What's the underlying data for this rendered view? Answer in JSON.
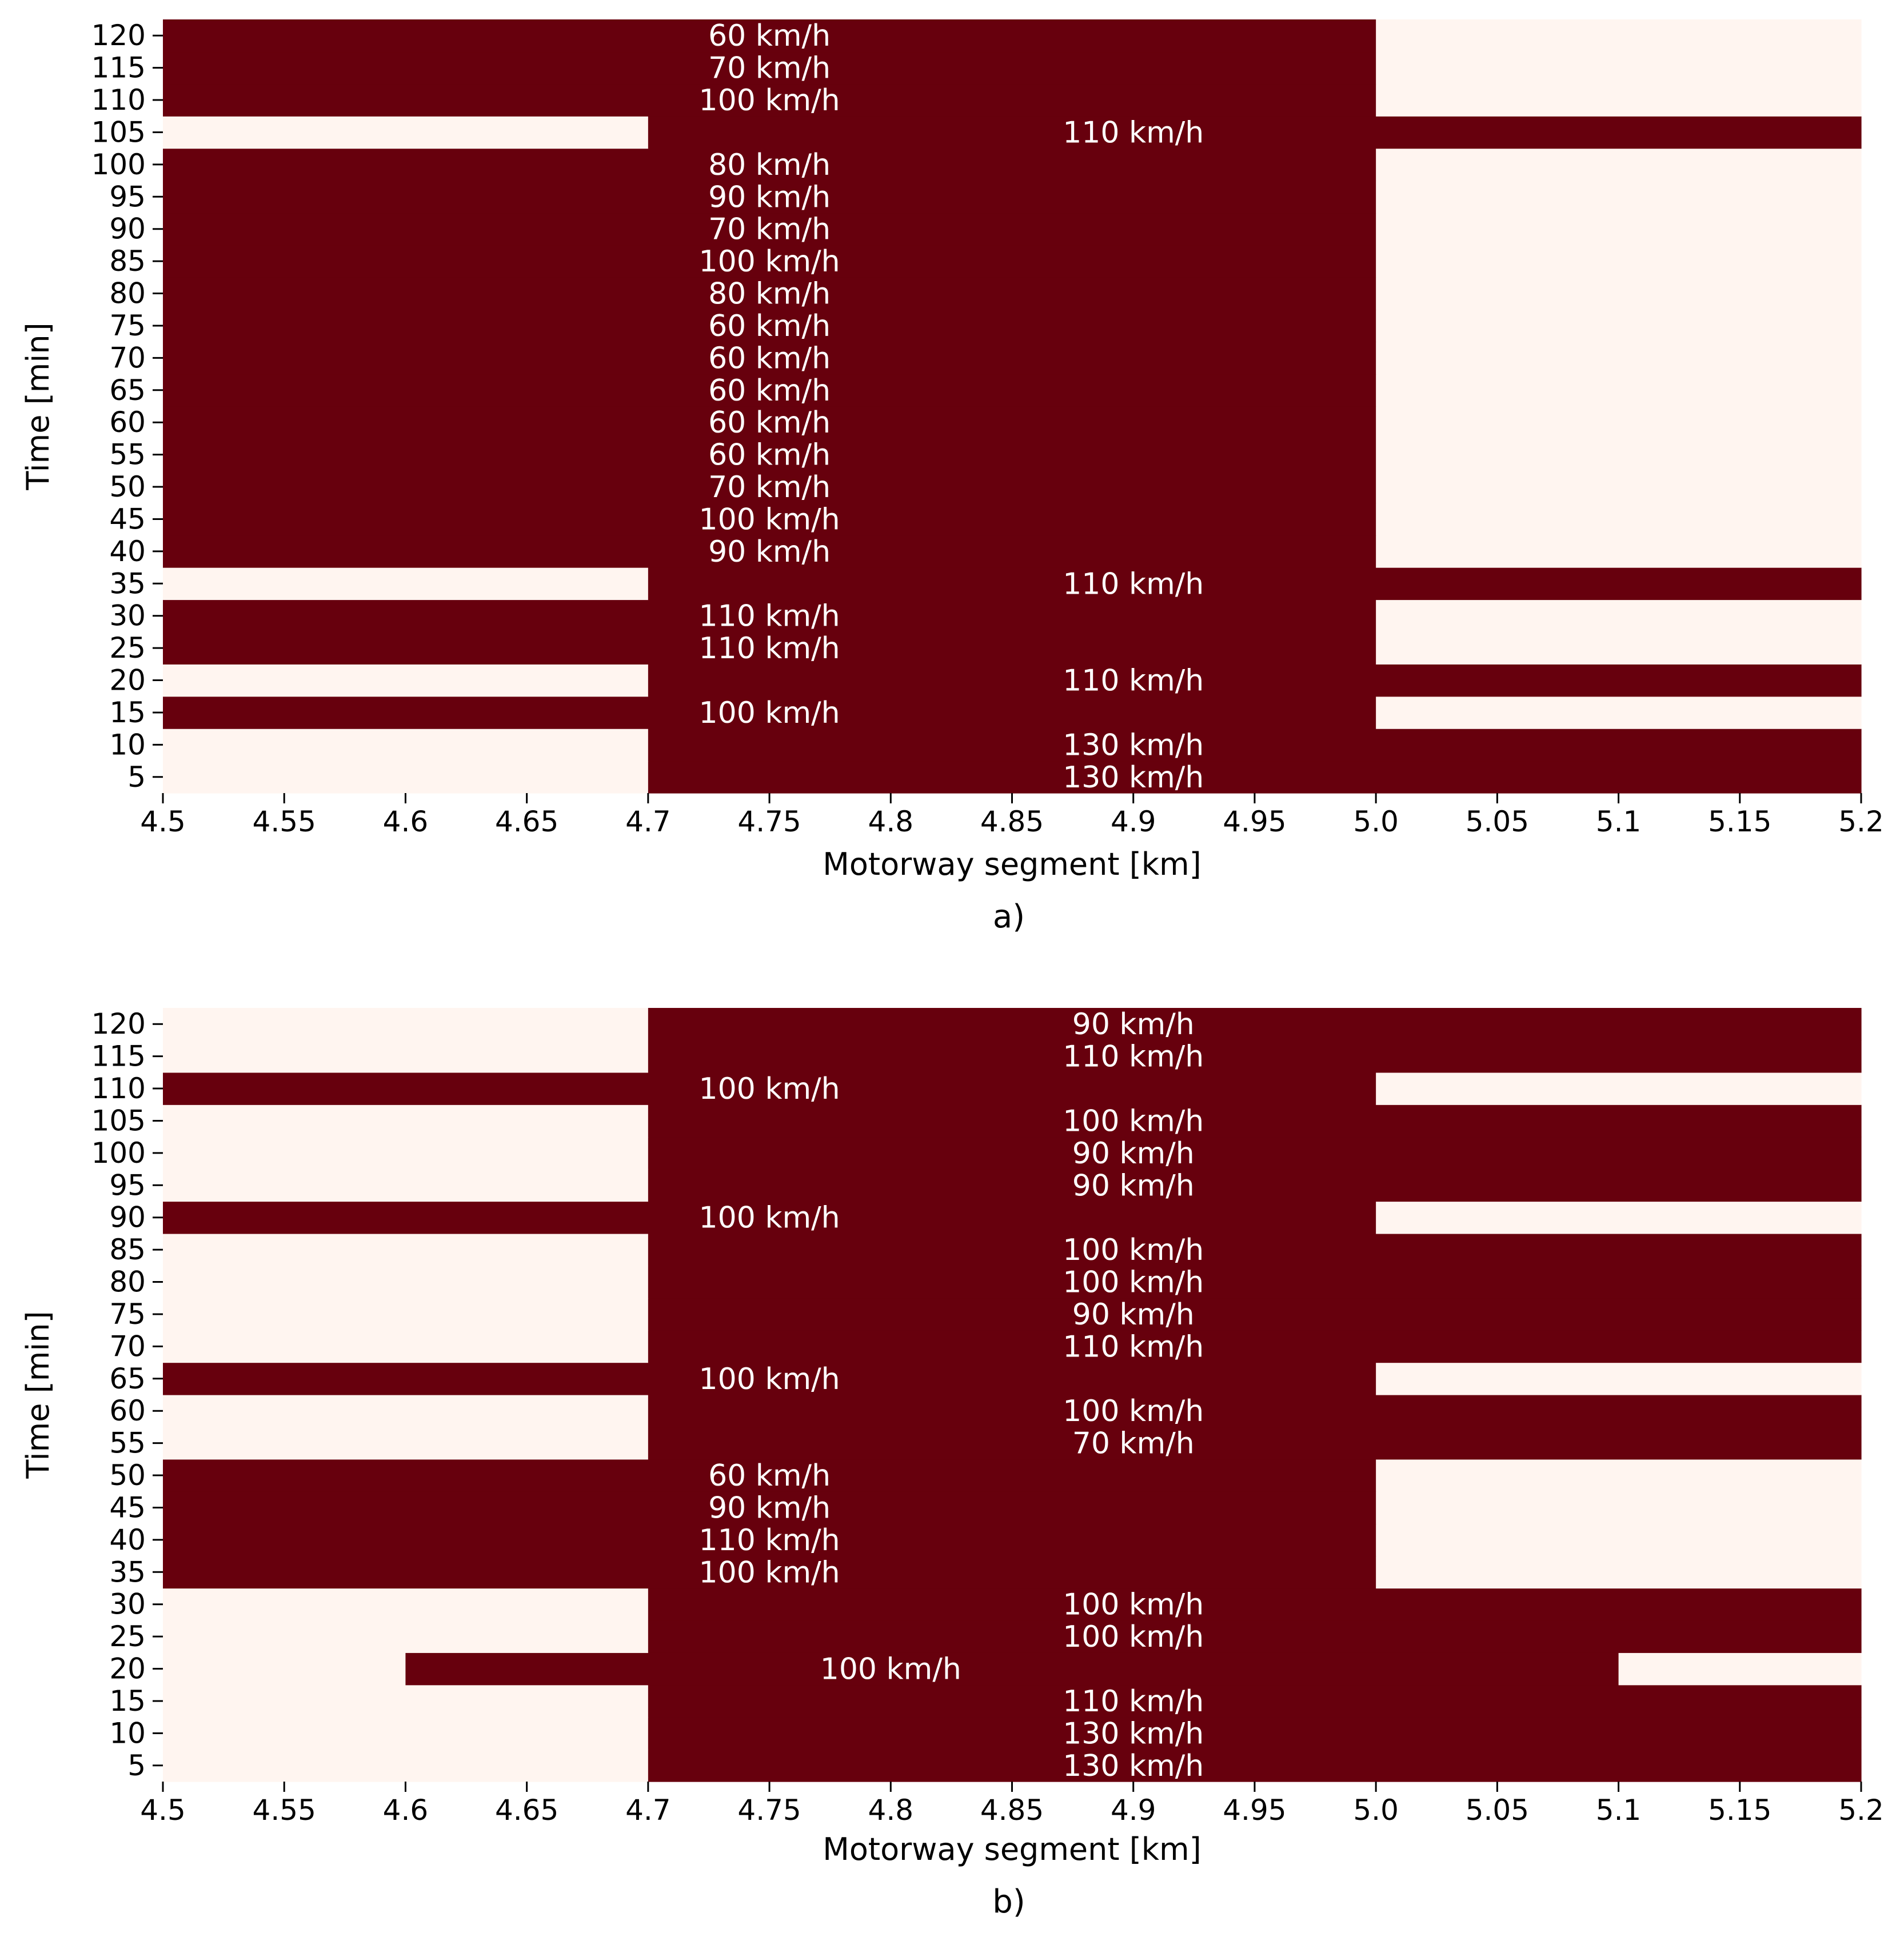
{
  "colors": {
    "active": "#67000d",
    "inactive": "#fff5f0",
    "annotation_text": "#ffffff",
    "axis": "#000000"
  },
  "chart_data": [
    {
      "type": "heatmap",
      "panel_label": "a)",
      "xlabel": "Motorway segment [km]",
      "ylabel": "Time [min]",
      "x_edges": [
        4.5,
        4.7,
        5.0,
        5.2
      ],
      "x_ticks": [
        "4.5",
        "4.55",
        "4.6",
        "4.65",
        "4.7",
        "4.75",
        "4.8",
        "4.85",
        "4.9",
        "4.95",
        "5.0",
        "5.05",
        "5.1",
        "5.15",
        "5.2"
      ],
      "times": [
        5,
        10,
        15,
        20,
        25,
        30,
        35,
        40,
        45,
        50,
        55,
        60,
        65,
        70,
        75,
        80,
        85,
        90,
        95,
        100,
        105,
        110,
        115,
        120
      ],
      "rows": [
        {
          "t": 5,
          "cells": [
            [
              4.5,
              4.7,
              0
            ],
            [
              4.7,
              5.2,
              1
            ]
          ],
          "labels": [
            {
              "x": 4.9,
              "text": "130 km/h"
            }
          ]
        },
        {
          "t": 10,
          "cells": [
            [
              4.5,
              4.7,
              0
            ],
            [
              4.7,
              5.2,
              1
            ]
          ],
          "labels": [
            {
              "x": 4.9,
              "text": "130 km/h"
            }
          ]
        },
        {
          "t": 15,
          "cells": [
            [
              4.5,
              5.0,
              1
            ],
            [
              5.0,
              5.2,
              0
            ]
          ],
          "labels": [
            {
              "x": 4.75,
              "text": "100 km/h"
            }
          ]
        },
        {
          "t": 20,
          "cells": [
            [
              4.5,
              4.7,
              0
            ],
            [
              4.7,
              5.2,
              1
            ]
          ],
          "labels": [
            {
              "x": 4.9,
              "text": "110 km/h"
            }
          ]
        },
        {
          "t": 25,
          "cells": [
            [
              4.5,
              5.0,
              1
            ],
            [
              5.0,
              5.2,
              0
            ]
          ],
          "labels": [
            {
              "x": 4.75,
              "text": "110 km/h"
            }
          ]
        },
        {
          "t": 30,
          "cells": [
            [
              4.5,
              5.0,
              1
            ],
            [
              5.0,
              5.2,
              0
            ]
          ],
          "labels": [
            {
              "x": 4.75,
              "text": "110 km/h"
            }
          ]
        },
        {
          "t": 35,
          "cells": [
            [
              4.5,
              4.7,
              0
            ],
            [
              4.7,
              5.2,
              1
            ]
          ],
          "labels": [
            {
              "x": 4.9,
              "text": "110 km/h"
            }
          ]
        },
        {
          "t": 40,
          "cells": [
            [
              4.5,
              5.0,
              1
            ],
            [
              5.0,
              5.2,
              0
            ]
          ],
          "labels": [
            {
              "x": 4.75,
              "text": "90 km/h"
            }
          ]
        },
        {
          "t": 45,
          "cells": [
            [
              4.5,
              5.0,
              1
            ],
            [
              5.0,
              5.2,
              0
            ]
          ],
          "labels": [
            {
              "x": 4.75,
              "text": "100 km/h"
            }
          ]
        },
        {
          "t": 50,
          "cells": [
            [
              4.5,
              5.0,
              1
            ],
            [
              5.0,
              5.2,
              0
            ]
          ],
          "labels": [
            {
              "x": 4.75,
              "text": "70 km/h"
            }
          ]
        },
        {
          "t": 55,
          "cells": [
            [
              4.5,
              5.0,
              1
            ],
            [
              5.0,
              5.2,
              0
            ]
          ],
          "labels": [
            {
              "x": 4.75,
              "text": "60 km/h"
            }
          ]
        },
        {
          "t": 60,
          "cells": [
            [
              4.5,
              5.0,
              1
            ],
            [
              5.0,
              5.2,
              0
            ]
          ],
          "labels": [
            {
              "x": 4.75,
              "text": "60 km/h"
            }
          ]
        },
        {
          "t": 65,
          "cells": [
            [
              4.5,
              5.0,
              1
            ],
            [
              5.0,
              5.2,
              0
            ]
          ],
          "labels": [
            {
              "x": 4.75,
              "text": "60 km/h"
            }
          ]
        },
        {
          "t": 70,
          "cells": [
            [
              4.5,
              5.0,
              1
            ],
            [
              5.0,
              5.2,
              0
            ]
          ],
          "labels": [
            {
              "x": 4.75,
              "text": "60 km/h"
            }
          ]
        },
        {
          "t": 75,
          "cells": [
            [
              4.5,
              5.0,
              1
            ],
            [
              5.0,
              5.2,
              0
            ]
          ],
          "labels": [
            {
              "x": 4.75,
              "text": "60 km/h"
            }
          ]
        },
        {
          "t": 80,
          "cells": [
            [
              4.5,
              5.0,
              1
            ],
            [
              5.0,
              5.2,
              0
            ]
          ],
          "labels": [
            {
              "x": 4.75,
              "text": "80 km/h"
            }
          ]
        },
        {
          "t": 85,
          "cells": [
            [
              4.5,
              5.0,
              1
            ],
            [
              5.0,
              5.2,
              0
            ]
          ],
          "labels": [
            {
              "x": 4.75,
              "text": "100 km/h"
            }
          ]
        },
        {
          "t": 90,
          "cells": [
            [
              4.5,
              5.0,
              1
            ],
            [
              5.0,
              5.2,
              0
            ]
          ],
          "labels": [
            {
              "x": 4.75,
              "text": "70 km/h"
            }
          ]
        },
        {
          "t": 95,
          "cells": [
            [
              4.5,
              5.0,
              1
            ],
            [
              5.0,
              5.2,
              0
            ]
          ],
          "labels": [
            {
              "x": 4.75,
              "text": "90 km/h"
            }
          ]
        },
        {
          "t": 100,
          "cells": [
            [
              4.5,
              5.0,
              1
            ],
            [
              5.0,
              5.2,
              0
            ]
          ],
          "labels": [
            {
              "x": 4.75,
              "text": "80 km/h"
            }
          ]
        },
        {
          "t": 105,
          "cells": [
            [
              4.5,
              4.7,
              0
            ],
            [
              4.7,
              5.2,
              1
            ]
          ],
          "labels": [
            {
              "x": 4.9,
              "text": "110 km/h"
            }
          ]
        },
        {
          "t": 110,
          "cells": [
            [
              4.5,
              5.0,
              1
            ],
            [
              5.0,
              5.2,
              0
            ]
          ],
          "labels": [
            {
              "x": 4.75,
              "text": "100 km/h"
            }
          ]
        },
        {
          "t": 115,
          "cells": [
            [
              4.5,
              5.0,
              1
            ],
            [
              5.0,
              5.2,
              0
            ]
          ],
          "labels": [
            {
              "x": 4.75,
              "text": "70 km/h"
            }
          ]
        },
        {
          "t": 120,
          "cells": [
            [
              4.5,
              5.0,
              1
            ],
            [
              5.0,
              5.2,
              0
            ]
          ],
          "labels": [
            {
              "x": 4.75,
              "text": "60 km/h"
            }
          ]
        }
      ]
    },
    {
      "type": "heatmap",
      "panel_label": "b)",
      "xlabel": "Motorway segment [km]",
      "ylabel": "Time [min]",
      "x_edges": [
        4.5,
        4.6,
        4.7,
        5.0,
        5.1,
        5.2
      ],
      "x_ticks": [
        "4.5",
        "4.55",
        "4.6",
        "4.65",
        "4.7",
        "4.75",
        "4.8",
        "4.85",
        "4.9",
        "4.95",
        "5.0",
        "5.05",
        "5.1",
        "5.15",
        "5.2"
      ],
      "times": [
        5,
        10,
        15,
        20,
        25,
        30,
        35,
        40,
        45,
        50,
        55,
        60,
        65,
        70,
        75,
        80,
        85,
        90,
        95,
        100,
        105,
        110,
        115,
        120
      ],
      "rows": [
        {
          "t": 5,
          "cells": [
            [
              4.5,
              4.7,
              0
            ],
            [
              4.7,
              5.2,
              1
            ]
          ],
          "labels": [
            {
              "x": 4.9,
              "text": "130 km/h"
            }
          ]
        },
        {
          "t": 10,
          "cells": [
            [
              4.5,
              4.7,
              0
            ],
            [
              4.7,
              5.2,
              1
            ]
          ],
          "labels": [
            {
              "x": 4.9,
              "text": "130 km/h"
            }
          ]
        },
        {
          "t": 15,
          "cells": [
            [
              4.5,
              4.7,
              0
            ],
            [
              4.7,
              5.2,
              1
            ]
          ],
          "labels": [
            {
              "x": 4.9,
              "text": "110 km/h"
            }
          ]
        },
        {
          "t": 20,
          "cells": [
            [
              4.5,
              4.6,
              0
            ],
            [
              4.6,
              5.1,
              1
            ],
            [
              5.1,
              5.2,
              0
            ]
          ],
          "labels": [
            {
              "x": 4.8,
              "text": "100 km/h"
            }
          ]
        },
        {
          "t": 25,
          "cells": [
            [
              4.5,
              4.7,
              0
            ],
            [
              4.7,
              5.2,
              1
            ]
          ],
          "labels": [
            {
              "x": 4.9,
              "text": "100 km/h"
            }
          ]
        },
        {
          "t": 30,
          "cells": [
            [
              4.5,
              4.7,
              0
            ],
            [
              4.7,
              5.2,
              1
            ]
          ],
          "labels": [
            {
              "x": 4.9,
              "text": "100 km/h"
            }
          ]
        },
        {
          "t": 35,
          "cells": [
            [
              4.5,
              5.0,
              1
            ],
            [
              5.0,
              5.2,
              0
            ]
          ],
          "labels": [
            {
              "x": 4.75,
              "text": "100 km/h"
            }
          ]
        },
        {
          "t": 40,
          "cells": [
            [
              4.5,
              5.0,
              1
            ],
            [
              5.0,
              5.2,
              0
            ]
          ],
          "labels": [
            {
              "x": 4.75,
              "text": "110 km/h"
            }
          ]
        },
        {
          "t": 45,
          "cells": [
            [
              4.5,
              5.0,
              1
            ],
            [
              5.0,
              5.2,
              0
            ]
          ],
          "labels": [
            {
              "x": 4.75,
              "text": "90 km/h"
            }
          ]
        },
        {
          "t": 50,
          "cells": [
            [
              4.5,
              5.0,
              1
            ],
            [
              5.0,
              5.2,
              0
            ]
          ],
          "labels": [
            {
              "x": 4.75,
              "text": "60 km/h"
            }
          ]
        },
        {
          "t": 55,
          "cells": [
            [
              4.5,
              4.7,
              0
            ],
            [
              4.7,
              5.2,
              1
            ]
          ],
          "labels": [
            {
              "x": 4.9,
              "text": "70 km/h"
            }
          ]
        },
        {
          "t": 60,
          "cells": [
            [
              4.5,
              4.7,
              0
            ],
            [
              4.7,
              5.2,
              1
            ]
          ],
          "labels": [
            {
              "x": 4.9,
              "text": "100 km/h"
            }
          ]
        },
        {
          "t": 65,
          "cells": [
            [
              4.5,
              5.0,
              1
            ],
            [
              5.0,
              5.2,
              0
            ]
          ],
          "labels": [
            {
              "x": 4.75,
              "text": "100 km/h"
            }
          ]
        },
        {
          "t": 70,
          "cells": [
            [
              4.5,
              4.7,
              0
            ],
            [
              4.7,
              5.2,
              1
            ]
          ],
          "labels": [
            {
              "x": 4.9,
              "text": "110 km/h"
            }
          ]
        },
        {
          "t": 75,
          "cells": [
            [
              4.5,
              4.7,
              0
            ],
            [
              4.7,
              5.2,
              1
            ]
          ],
          "labels": [
            {
              "x": 4.9,
              "text": "90 km/h"
            }
          ]
        },
        {
          "t": 80,
          "cells": [
            [
              4.5,
              4.7,
              0
            ],
            [
              4.7,
              5.2,
              1
            ]
          ],
          "labels": [
            {
              "x": 4.9,
              "text": "100 km/h"
            }
          ]
        },
        {
          "t": 85,
          "cells": [
            [
              4.5,
              4.7,
              0
            ],
            [
              4.7,
              5.2,
              1
            ]
          ],
          "labels": [
            {
              "x": 4.9,
              "text": "100 km/h"
            }
          ]
        },
        {
          "t": 90,
          "cells": [
            [
              4.5,
              5.0,
              1
            ],
            [
              5.0,
              5.2,
              0
            ]
          ],
          "labels": [
            {
              "x": 4.75,
              "text": "100 km/h"
            }
          ]
        },
        {
          "t": 95,
          "cells": [
            [
              4.5,
              4.7,
              0
            ],
            [
              4.7,
              5.2,
              1
            ]
          ],
          "labels": [
            {
              "x": 4.9,
              "text": "90 km/h"
            }
          ]
        },
        {
          "t": 100,
          "cells": [
            [
              4.5,
              4.7,
              0
            ],
            [
              4.7,
              5.2,
              1
            ]
          ],
          "labels": [
            {
              "x": 4.9,
              "text": "90 km/h"
            }
          ]
        },
        {
          "t": 105,
          "cells": [
            [
              4.5,
              4.7,
              0
            ],
            [
              4.7,
              5.2,
              1
            ]
          ],
          "labels": [
            {
              "x": 4.9,
              "text": "100 km/h"
            }
          ]
        },
        {
          "t": 110,
          "cells": [
            [
              4.5,
              5.0,
              1
            ],
            [
              5.0,
              5.2,
              0
            ]
          ],
          "labels": [
            {
              "x": 4.75,
              "text": "100 km/h"
            }
          ]
        },
        {
          "t": 115,
          "cells": [
            [
              4.5,
              4.7,
              0
            ],
            [
              4.7,
              5.2,
              1
            ]
          ],
          "labels": [
            {
              "x": 4.9,
              "text": "110 km/h"
            }
          ]
        },
        {
          "t": 120,
          "cells": [
            [
              4.5,
              4.7,
              0
            ],
            [
              4.7,
              5.2,
              1
            ]
          ],
          "labels": [
            {
              "x": 4.9,
              "text": "90 km/h"
            }
          ]
        }
      ]
    }
  ]
}
